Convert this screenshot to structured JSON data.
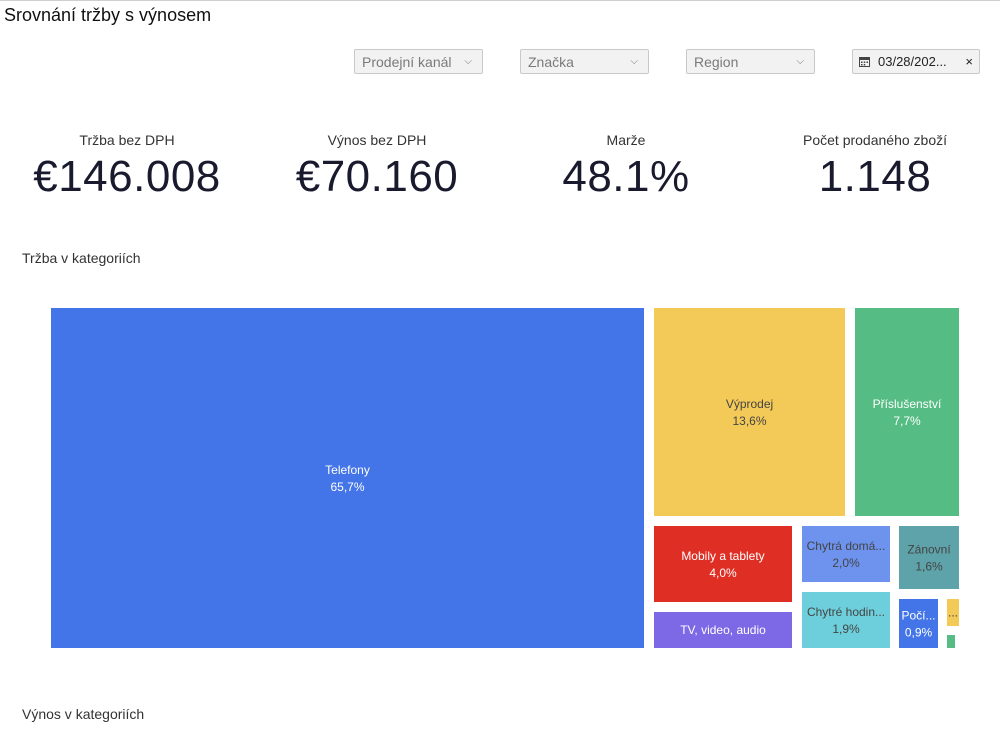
{
  "page": {
    "title": "Srovnání tržby s výnosem"
  },
  "filters": {
    "channel": {
      "label": "Prodejní kanál",
      "icon": "chevron-down-icon"
    },
    "brand": {
      "label": "Značka",
      "icon": "chevron-down-icon"
    },
    "region": {
      "label": "Region",
      "icon": "chevron-down-icon"
    },
    "date": {
      "value": "03/28/202...",
      "icon": "calendar-icon",
      "clear": "×"
    }
  },
  "kpis": [
    {
      "label": "Tržba bez DPH",
      "value": "€146.008"
    },
    {
      "label": "Výnos bez DPH",
      "value": "€70.160"
    },
    {
      "label": "Marže",
      "value": "48.1%"
    },
    {
      "label": "Počet prodaného zboží",
      "value": "1.148"
    }
  ],
  "sections": {
    "revenue_title": "Tržba v kategoriích",
    "margin_title": "Výnos v kategoriích"
  },
  "chart_data": {
    "type": "treemap",
    "title": "Tržba v kategoriích",
    "unit": "%",
    "items": [
      {
        "label": "Telefony",
        "value": 65.7,
        "display_value": "65,7%",
        "color": "#4374e8"
      },
      {
        "label": "Výprodej",
        "value": 13.6,
        "display_value": "13,6%",
        "color": "#f3c957"
      },
      {
        "label": "Příslušenství",
        "value": 7.7,
        "display_value": "7,7%",
        "color": "#55bc83"
      },
      {
        "label": "Mobily a tablety",
        "value": 4.0,
        "display_value": "4,0%",
        "color": "#df2f25"
      },
      {
        "label": "TV, video, audio",
        "value": null,
        "display_value": "",
        "color": "#7d69e6"
      },
      {
        "label": "Chytrá domá...",
        "value": 2.0,
        "display_value": "2,0%",
        "color": "#6d93ef"
      },
      {
        "label": "Zánovní",
        "value": 1.6,
        "display_value": "1,6%",
        "color": "#5ea3aa"
      },
      {
        "label": "Chytré hodin...",
        "value": 1.9,
        "display_value": "1,9%",
        "color": "#6dcfdc"
      },
      {
        "label": "Počí...",
        "value": 0.9,
        "display_value": "0,9%",
        "color": "#4374e8"
      },
      {
        "label": "...",
        "value": null,
        "display_value": "",
        "color": "#f3c957"
      },
      {
        "label": "",
        "value": null,
        "display_value": "",
        "color": "#55bc83"
      }
    ]
  }
}
